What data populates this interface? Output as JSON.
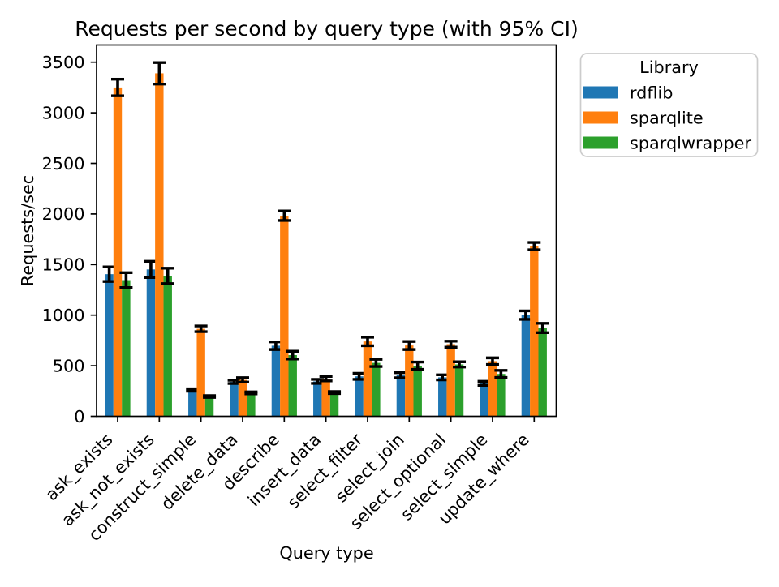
{
  "chart_data": {
    "type": "bar",
    "title": "Requests per second by query type (with 95% CI)",
    "xlabel": "Query type",
    "ylabel": "Requests/sec",
    "categories": [
      "ask_exists",
      "ask_not_exists",
      "construct_simple",
      "delete_data",
      "describe",
      "insert_data",
      "select_filter",
      "select_join",
      "select_optional",
      "select_simple",
      "update_where"
    ],
    "series": [
      {
        "name": "rdflib",
        "color": "#1f77b4",
        "values": [
          1405,
          1452,
          260,
          340,
          698,
          345,
          395,
          406,
          385,
          326,
          1000
        ],
        "errors": [
          72,
          80,
          12,
          16,
          38,
          20,
          30,
          25,
          25,
          20,
          42
        ]
      },
      {
        "name": "sparqlite",
        "color": "#ff7f0e",
        "values": [
          3250,
          3390,
          865,
          360,
          1983,
          372,
          740,
          700,
          713,
          545,
          1682
        ],
        "errors": [
          82,
          106,
          28,
          22,
          47,
          22,
          42,
          40,
          30,
          33,
          36
        ]
      },
      {
        "name": "sparqlwrapper",
        "color": "#2ca02c",
        "values": [
          1346,
          1388,
          196,
          232,
          605,
          235,
          528,
          500,
          513,
          419,
          873
        ],
        "errors": [
          74,
          76,
          9,
          10,
          38,
          10,
          36,
          36,
          26,
          35,
          46
        ]
      }
    ],
    "ylim": [
      0,
      3670
    ],
    "yticks": [
      0,
      500,
      1000,
      1500,
      2000,
      2500,
      3000,
      3500
    ],
    "legend": {
      "title": "Library",
      "position": "upper-right-outside"
    },
    "error_bar_color": "#000000",
    "grid": false
  }
}
